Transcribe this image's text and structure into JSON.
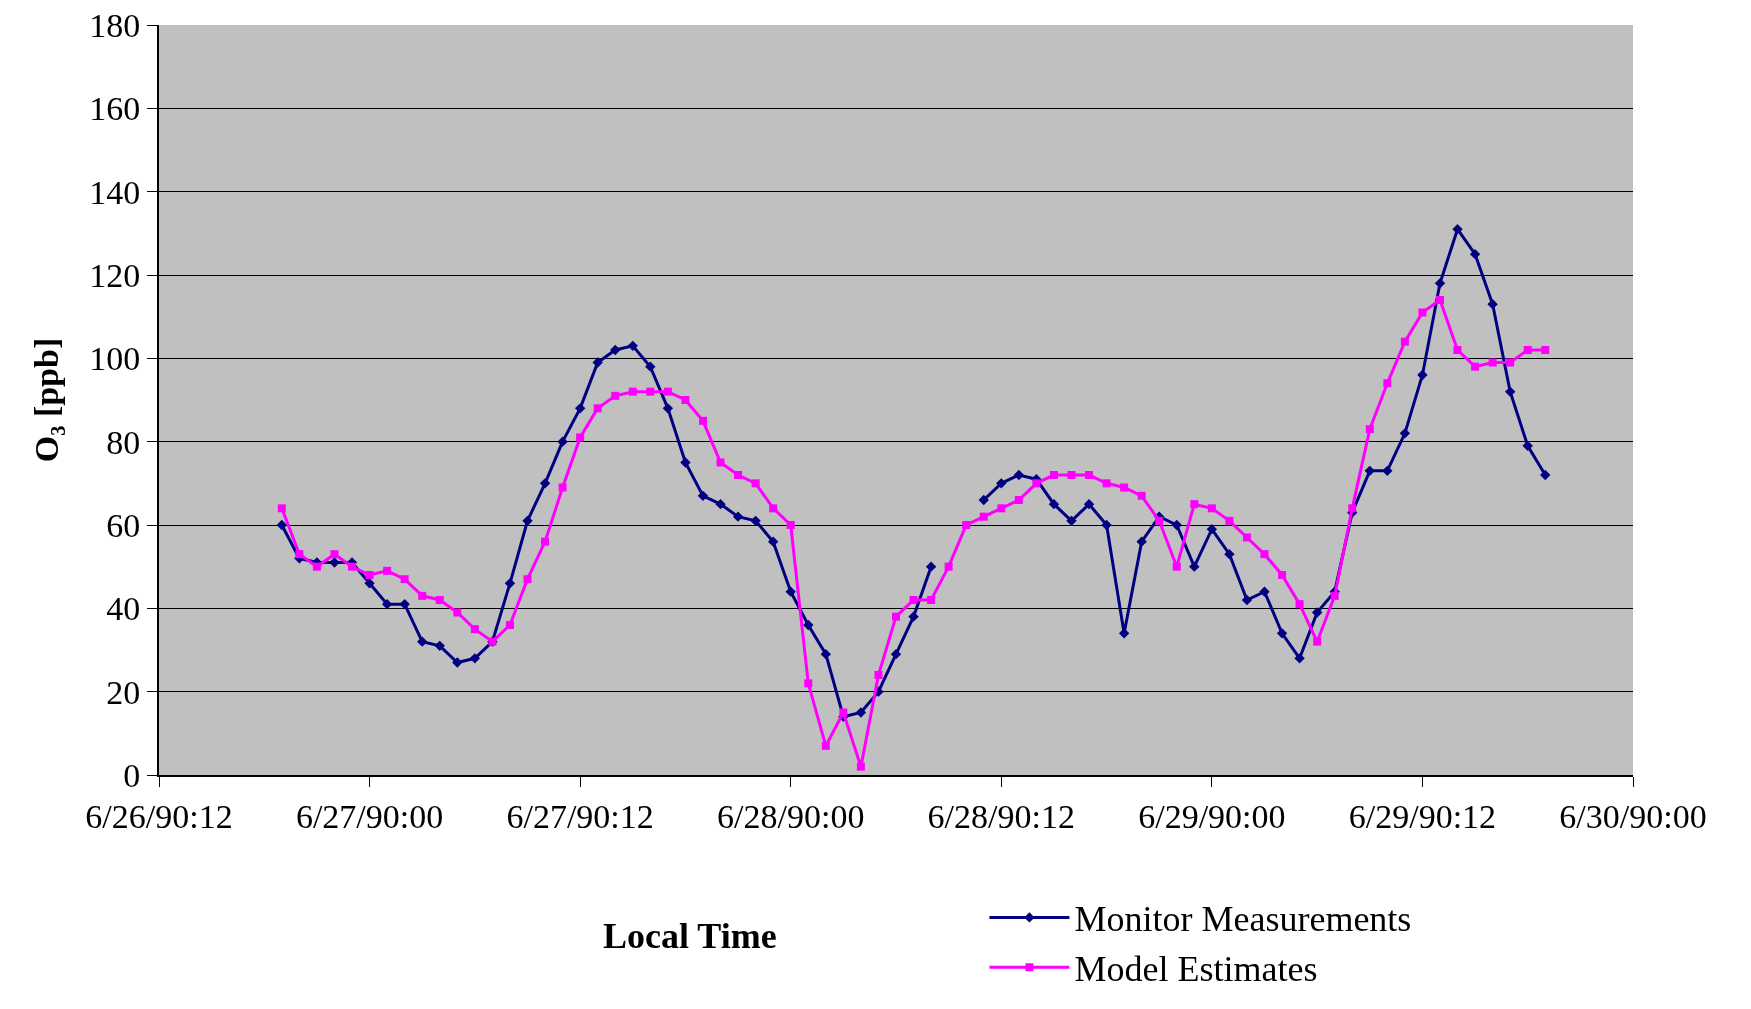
{
  "chart_data": {
    "type": "line",
    "xlabel": "Local Time",
    "ylabel": "O₃ [ppb]",
    "x": [
      "1990-06-26T19:00",
      "1990-06-26T20:00",
      "1990-06-26T21:00",
      "1990-06-26T22:00",
      "1990-06-26T23:00",
      "1990-06-27T00:00",
      "1990-06-27T01:00",
      "1990-06-27T02:00",
      "1990-06-27T03:00",
      "1990-06-27T04:00",
      "1990-06-27T05:00",
      "1990-06-27T06:00",
      "1990-06-27T07:00",
      "1990-06-27T08:00",
      "1990-06-27T09:00",
      "1990-06-27T10:00",
      "1990-06-27T11:00",
      "1990-06-27T12:00",
      "1990-06-27T13:00",
      "1990-06-27T14:00",
      "1990-06-27T15:00",
      "1990-06-27T16:00",
      "1990-06-27T17:00",
      "1990-06-27T18:00",
      "1990-06-27T19:00",
      "1990-06-27T20:00",
      "1990-06-27T21:00",
      "1990-06-27T22:00",
      "1990-06-27T23:00",
      "1990-06-28T00:00",
      "1990-06-28T01:00",
      "1990-06-28T02:00",
      "1990-06-28T03:00",
      "1990-06-28T04:00",
      "1990-06-28T05:00",
      "1990-06-28T06:00",
      "1990-06-28T07:00",
      "1990-06-28T08:00",
      "1990-06-28T09:00",
      "1990-06-28T10:00",
      "1990-06-28T11:00",
      "1990-06-28T12:00",
      "1990-06-28T13:00",
      "1990-06-28T14:00",
      "1990-06-28T15:00",
      "1990-06-28T16:00",
      "1990-06-28T17:00",
      "1990-06-28T18:00",
      "1990-06-28T19:00",
      "1990-06-28T20:00",
      "1990-06-28T21:00",
      "1990-06-28T22:00",
      "1990-06-28T23:00",
      "1990-06-29T00:00",
      "1990-06-29T01:00",
      "1990-06-29T02:00",
      "1990-06-29T03:00",
      "1990-06-29T04:00",
      "1990-06-29T05:00",
      "1990-06-29T06:00",
      "1990-06-29T07:00",
      "1990-06-29T08:00",
      "1990-06-29T09:00",
      "1990-06-29T10:00",
      "1990-06-29T11:00",
      "1990-06-29T12:00",
      "1990-06-29T13:00",
      "1990-06-29T14:00",
      "1990-06-29T15:00",
      "1990-06-29T16:00",
      "1990-06-29T17:00",
      "1990-06-29T18:00",
      "1990-06-29T19:00"
    ],
    "series": [
      {
        "name": "Monitor Measurements",
        "color": "#000080",
        "marker": "diamond",
        "values": [
          60,
          52,
          51,
          51,
          51,
          46,
          41,
          41,
          32,
          31,
          27,
          28,
          32,
          46,
          61,
          70,
          80,
          88,
          99,
          102,
          103,
          98,
          88,
          75,
          67,
          65,
          62,
          61,
          56,
          44,
          36,
          29,
          14,
          15,
          20,
          29,
          38,
          50,
          null,
          null,
          66,
          70,
          72,
          71,
          65,
          61,
          65,
          60,
          34,
          56,
          62,
          60,
          50,
          59,
          53,
          42,
          44,
          34,
          28,
          39,
          44,
          63,
          73,
          73,
          82,
          96,
          118,
          131,
          125,
          113,
          92,
          79,
          72
        ]
      },
      {
        "name": "Model Estimates",
        "color": "#ff00ff",
        "marker": "square",
        "values": [
          64,
          53,
          50,
          53,
          50,
          48,
          49,
          47,
          43,
          42,
          39,
          35,
          32,
          36,
          47,
          56,
          69,
          81,
          88,
          91,
          92,
          92,
          92,
          90,
          85,
          75,
          72,
          70,
          64,
          60,
          22,
          7,
          15,
          2,
          24,
          38,
          42,
          42,
          50,
          60,
          62,
          64,
          66,
          70,
          72,
          72,
          72,
          70,
          69,
          67,
          61,
          50,
          65,
          64,
          61,
          57,
          53,
          48,
          41,
          32,
          43,
          64,
          83,
          94,
          104,
          111,
          114,
          102,
          98,
          99,
          99,
          102,
          102
        ]
      }
    ],
    "xlim": [
      "1990-06-26T12:00",
      "1990-06-30T00:00"
    ],
    "xticks": [
      {
        "value": "1990-06-26T12:00",
        "label": "6/26/90:12"
      },
      {
        "value": "1990-06-27T00:00",
        "label": "6/27/90:00"
      },
      {
        "value": "1990-06-27T12:00",
        "label": "6/27/90:12"
      },
      {
        "value": "1990-06-28T00:00",
        "label": "6/28/90:00"
      },
      {
        "value": "1990-06-28T12:00",
        "label": "6/28/90:12"
      },
      {
        "value": "1990-06-29T00:00",
        "label": "6/29/90:00"
      },
      {
        "value": "1990-06-29T12:00",
        "label": "6/29/90:12"
      },
      {
        "value": "1990-06-30T00:00",
        "label": "6/30/90:00"
      }
    ],
    "ylim": [
      0,
      180
    ],
    "yticks": [
      0,
      20,
      40,
      60,
      80,
      100,
      120,
      140,
      160,
      180
    ],
    "grid": "y",
    "legend": "bottom right",
    "line_style": "solid"
  }
}
